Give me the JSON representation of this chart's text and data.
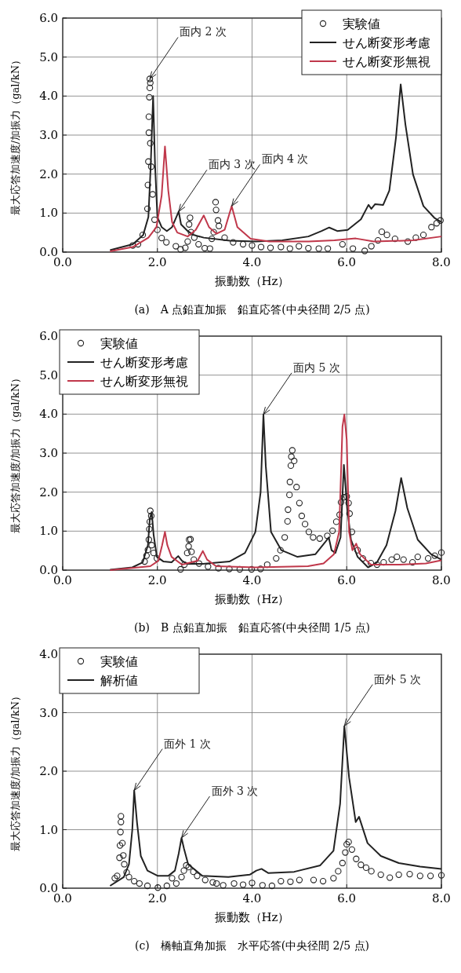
{
  "chart_data": [
    {
      "type": "line",
      "title": "(a)　A 点鉛直加振　鉛直応答(中央径間 2/5 点)",
      "xlabel": "振動数（Hz）",
      "ylabel": "最大応答加速度/加振力（gal/kN）",
      "xlim": [
        0,
        8
      ],
      "ylim": [
        0,
        6
      ],
      "xticks": [
        {
          "value": 0,
          "label": "0.0"
        },
        {
          "value": 2,
          "label": "2.0"
        },
        {
          "value": 4,
          "label": "4.0"
        },
        {
          "value": 6,
          "label": "6.0"
        },
        {
          "value": 8,
          "label": "8.0"
        }
      ],
      "yticks": [
        {
          "value": 0,
          "label": "0.0"
        },
        {
          "value": 1,
          "label": "1.0"
        },
        {
          "value": 2,
          "label": "2.0"
        },
        {
          "value": 3,
          "label": "3.0"
        },
        {
          "value": 4,
          "label": "4.0"
        },
        {
          "value": 5,
          "label": "5.0"
        },
        {
          "value": 6,
          "label": "6.0"
        }
      ],
      "grid": true,
      "legend": "top right",
      "annotations": [
        {
          "text": "面内 2 次",
          "x": 1.84,
          "y": 4.44
        },
        {
          "text": "面内 3 次",
          "x": 2.45,
          "y": 1.04
        },
        {
          "text": "面内 4 次",
          "x": 3.57,
          "y": 1.18
        }
      ],
      "series": [
        {
          "name": "実験値",
          "type": "scatter",
          "marker": "circle",
          "color": "#222222",
          "x": [
            1.48,
            1.59,
            1.69,
            1.79,
            1.8,
            1.81,
            1.82,
            1.82,
            1.83,
            1.84,
            1.84,
            1.85,
            1.85,
            1.87,
            1.9,
            1.94,
            2.0,
            2.09,
            2.19,
            2.39,
            2.49,
            2.59,
            2.64,
            2.67,
            2.69,
            2.71,
            2.78,
            2.87,
            3.0,
            3.11,
            3.15,
            3.19,
            3.23,
            3.24,
            3.28,
            3.3,
            3.42,
            3.6,
            3.81,
            4.0,
            4.19,
            4.39,
            4.61,
            4.8,
            4.99,
            5.19,
            5.41,
            5.6,
            5.91,
            6.13,
            6.38,
            6.52,
            6.66,
            6.74,
            6.85,
            7.02,
            7.29,
            7.46,
            7.62,
            7.79,
            7.9,
            7.98
          ],
          "values": [
            0.17,
            0.2,
            0.44,
            1.11,
            1.72,
            2.32,
            3.06,
            3.47,
            3.97,
            4.21,
            4.44,
            4.34,
            2.79,
            2.19,
            1.48,
            0.83,
            0.57,
            0.36,
            0.25,
            0.15,
            0.07,
            0.11,
            0.27,
            0.71,
            0.88,
            0.51,
            0.37,
            0.2,
            0.1,
            0.09,
            0.34,
            0.51,
            1.28,
            1.08,
            0.81,
            0.67,
            0.37,
            0.25,
            0.2,
            0.17,
            0.13,
            0.11,
            0.13,
            0.09,
            0.15,
            0.1,
            0.09,
            0.09,
            0.2,
            0.09,
            0.03,
            0.15,
            0.3,
            0.52,
            0.44,
            0.34,
            0.27,
            0.37,
            0.44,
            0.64,
            0.74,
            0.81
          ]
        },
        {
          "name": "せん断変形考慮",
          "color": "#222222",
          "x": [
            1.0,
            1.48,
            1.7,
            1.81,
            1.86,
            1.91,
            1.95,
            2.0,
            2.09,
            2.2,
            2.31,
            2.45,
            2.5,
            2.64,
            2.76,
            2.98,
            3.53,
            4.08,
            4.64,
            5.19,
            5.47,
            5.63,
            5.8,
            6.02,
            6.3,
            6.46,
            6.52,
            6.6,
            6.77,
            6.9,
            7.04,
            7.14,
            7.24,
            7.4,
            7.62,
            7.85,
            8.0
          ],
          "values": [
            0.05,
            0.2,
            0.44,
            0.9,
            2.25,
            4.0,
            2.25,
            0.9,
            0.64,
            0.54,
            0.64,
            1.04,
            0.71,
            0.54,
            0.44,
            0.37,
            0.29,
            0.27,
            0.3,
            0.4,
            0.54,
            0.63,
            0.54,
            0.57,
            0.84,
            1.21,
            1.11,
            1.23,
            1.21,
            1.58,
            2.93,
            4.3,
            3.27,
            1.99,
            1.18,
            0.88,
            0.77
          ]
        },
        {
          "name": "せん断変形無視",
          "color": "#c0384b",
          "x": [
            1.0,
            1.48,
            1.81,
            1.98,
            2.09,
            2.16,
            2.23,
            2.31,
            2.42,
            2.64,
            2.81,
            2.98,
            3.09,
            3.25,
            3.42,
            3.57,
            3.69,
            3.97,
            4.36,
            5.19,
            5.74,
            6.19,
            6.57,
            7.4,
            8.0
          ],
          "values": [
            0.02,
            0.13,
            0.37,
            0.64,
            1.45,
            2.71,
            1.58,
            0.77,
            0.5,
            0.4,
            0.57,
            0.94,
            0.64,
            0.47,
            0.57,
            1.18,
            0.64,
            0.34,
            0.27,
            0.27,
            0.3,
            0.35,
            0.27,
            0.3,
            0.4
          ]
        }
      ]
    },
    {
      "type": "line",
      "title": "(b)　B 点鉛直加振　鉛直応答(中央径間 1/5 点)",
      "xlabel": "振動数（Hz）",
      "ylabel": "最大応答加速度/加振力（gal/kN）",
      "xlim": [
        0,
        8
      ],
      "ylim": [
        0,
        6
      ],
      "xticks": [
        {
          "value": 0,
          "label": "0.0"
        },
        {
          "value": 2,
          "label": "2.0"
        },
        {
          "value": 4,
          "label": "4.0"
        },
        {
          "value": 6,
          "label": "6.0"
        },
        {
          "value": 8,
          "label": "8.0"
        }
      ],
      "yticks": [
        {
          "value": 0,
          "label": "0.0"
        },
        {
          "value": 1,
          "label": "1.0"
        },
        {
          "value": 2,
          "label": "2.0"
        },
        {
          "value": 3,
          "label": "3.0"
        },
        {
          "value": 4,
          "label": "4.0"
        },
        {
          "value": 5,
          "label": "5.0"
        },
        {
          "value": 6,
          "label": "6.0"
        }
      ],
      "grid": true,
      "legend": "top left",
      "annotations": [
        {
          "text": "面内 5 次",
          "x": 4.24,
          "y": 3.99
        }
      ],
      "series": [
        {
          "name": "実験値",
          "type": "scatter",
          "marker": "circle",
          "color": "#222222",
          "x": [
            1.73,
            1.77,
            1.8,
            1.82,
            1.83,
            1.84,
            1.85,
            1.87,
            1.88,
            1.92,
            1.99,
            2.49,
            2.57,
            2.63,
            2.66,
            2.67,
            2.7,
            2.72,
            2.77,
            2.88,
            3.07,
            3.29,
            3.52,
            3.74,
            3.99,
            4.18,
            4.32,
            4.51,
            4.6,
            4.69,
            4.75,
            4.76,
            4.79,
            4.8,
            4.82,
            4.83,
            4.85,
            4.89,
            4.94,
            5.0,
            5.05,
            5.12,
            5.2,
            5.29,
            5.43,
            5.59,
            5.7,
            5.78,
            5.85,
            5.88,
            5.94,
            6.0,
            6.04,
            6.06,
            6.11,
            6.23,
            6.34,
            6.51,
            6.64,
            6.78,
            6.95,
            7.06,
            7.2,
            7.39,
            7.5,
            7.72,
            7.86,
            8.0
          ],
          "values": [
            0.22,
            0.37,
            0.52,
            0.78,
            1.05,
            1.24,
            1.52,
            1.39,
            0.64,
            0.44,
            0.3,
            0.02,
            0.14,
            0.44,
            0.61,
            0.78,
            0.79,
            0.47,
            0.27,
            0.17,
            0.09,
            0.05,
            0.03,
            0.02,
            0.02,
            0.03,
            0.14,
            0.3,
            0.51,
            0.84,
            1.25,
            1.55,
            1.93,
            2.26,
            2.68,
            2.91,
            3.07,
            2.8,
            2.13,
            1.72,
            1.39,
            1.18,
            0.98,
            0.84,
            0.81,
            0.88,
            1.01,
            1.24,
            1.42,
            1.74,
            1.87,
            1.89,
            1.72,
            1.45,
            0.98,
            0.51,
            0.3,
            0.18,
            0.14,
            0.2,
            0.27,
            0.34,
            0.27,
            0.2,
            0.34,
            0.3,
            0.37,
            0.45
          ]
        },
        {
          "name": "せん断変形考慮",
          "color": "#222222",
          "x": [
            1.0,
            1.47,
            1.69,
            1.8,
            1.84,
            1.88,
            1.92,
            1.99,
            2.13,
            2.3,
            2.44,
            2.52,
            2.63,
            2.96,
            3.52,
            3.85,
            4.07,
            4.18,
            4.24,
            4.29,
            4.4,
            4.62,
            4.96,
            5.34,
            5.54,
            5.62,
            5.68,
            5.76,
            5.87,
            5.94,
            6.01,
            6.09,
            6.23,
            6.45,
            6.64,
            6.84,
            7.03,
            7.15,
            7.28,
            7.5,
            7.78,
            8.0
          ],
          "values": [
            0.01,
            0.07,
            0.2,
            0.64,
            1.32,
            1.49,
            0.91,
            0.34,
            0.22,
            0.2,
            0.36,
            0.24,
            0.16,
            0.16,
            0.22,
            0.44,
            0.98,
            1.99,
            3.99,
            2.67,
            0.98,
            0.51,
            0.34,
            0.41,
            0.71,
            0.84,
            0.51,
            0.44,
            0.84,
            2.7,
            1.59,
            0.78,
            0.34,
            0.07,
            0.2,
            0.64,
            1.52,
            2.36,
            1.59,
            0.78,
            0.41,
            0.27
          ]
        },
        {
          "name": "せん断変形無視",
          "color": "#c0384b",
          "x": [
            1.0,
            1.85,
            2.02,
            2.1,
            2.16,
            2.21,
            2.3,
            2.52,
            2.85,
            2.96,
            3.05,
            3.24,
            4.07,
            5.18,
            5.51,
            5.73,
            5.84,
            5.91,
            5.95,
            6.0,
            6.05,
            6.12,
            6.2,
            6.28,
            6.51,
            7.12,
            7.67,
            8.0
          ],
          "values": [
            0.0,
            0.1,
            0.24,
            0.64,
            0.98,
            0.64,
            0.34,
            0.14,
            0.24,
            0.49,
            0.27,
            0.1,
            0.07,
            0.1,
            0.17,
            0.41,
            0.98,
            3.68,
            3.99,
            3.34,
            0.98,
            0.51,
            0.68,
            0.41,
            0.14,
            0.14,
            0.17,
            0.25
          ]
        }
      ]
    },
    {
      "type": "line",
      "title": "(c)　橋軸直角加振　水平応答(中央径間 2/5 点)",
      "xlabel": "振動数（Hz）",
      "ylabel": "最大応答加速度/加振力（gal/kN）",
      "xlim": [
        0,
        8
      ],
      "ylim": [
        0,
        4
      ],
      "xticks": [
        {
          "value": 0,
          "label": "0.0"
        },
        {
          "value": 2,
          "label": "2.0"
        },
        {
          "value": 4,
          "label": "4.0"
        },
        {
          "value": 6,
          "label": "6.0"
        },
        {
          "value": 8,
          "label": "8.0"
        }
      ],
      "yticks": [
        {
          "value": 0,
          "label": "0.0"
        },
        {
          "value": 1,
          "label": "1.0"
        },
        {
          "value": 2,
          "label": "2.0"
        },
        {
          "value": 3,
          "label": "3.0"
        },
        {
          "value": 4,
          "label": "4.0"
        }
      ],
      "grid": true,
      "legend": "top left",
      "annotations": [
        {
          "text": "面外 1 次",
          "x": 1.51,
          "y": 1.67
        },
        {
          "text": "面外 3 次",
          "x": 2.51,
          "y": 0.86
        },
        {
          "text": "面外 5 次",
          "x": 5.95,
          "y": 2.77
        }
      ],
      "series": [
        {
          "name": "実験値",
          "type": "scatter",
          "marker": "circle",
          "color": "#222222",
          "x": [
            1.1,
            1.15,
            1.2,
            1.21,
            1.22,
            1.23,
            1.23,
            1.26,
            1.28,
            1.3,
            1.35,
            1.4,
            1.51,
            1.62,
            1.79,
            2.01,
            2.2,
            2.31,
            2.4,
            2.51,
            2.56,
            2.61,
            2.66,
            2.76,
            2.84,
            3.01,
            3.17,
            3.25,
            3.39,
            3.62,
            3.81,
            4.0,
            4.22,
            4.42,
            4.61,
            4.81,
            5.0,
            5.3,
            5.5,
            5.72,
            5.82,
            5.91,
            5.97,
            6.0,
            6.04,
            6.11,
            6.2,
            6.3,
            6.41,
            6.52,
            6.72,
            6.91,
            7.1,
            7.33,
            7.55,
            7.77,
            8.0
          ],
          "values": [
            0.17,
            0.21,
            0.52,
            0.73,
            0.96,
            1.13,
            1.23,
            0.77,
            0.56,
            0.41,
            0.27,
            0.19,
            0.12,
            0.08,
            0.04,
            0.01,
            0.04,
            0.17,
            0.08,
            0.19,
            0.3,
            0.39,
            0.36,
            0.28,
            0.21,
            0.14,
            0.1,
            0.08,
            0.05,
            0.08,
            0.06,
            0.09,
            0.05,
            0.04,
            0.12,
            0.11,
            0.14,
            0.14,
            0.12,
            0.17,
            0.29,
            0.43,
            0.61,
            0.75,
            0.79,
            0.66,
            0.5,
            0.4,
            0.35,
            0.29,
            0.23,
            0.18,
            0.23,
            0.24,
            0.21,
            0.21,
            0.22
          ]
        },
        {
          "name": "解析値",
          "color": "#222222",
          "x": [
            1.0,
            1.29,
            1.4,
            1.47,
            1.51,
            1.57,
            1.65,
            1.79,
            2.01,
            2.23,
            2.37,
            2.45,
            2.51,
            2.56,
            2.65,
            2.95,
            3.5,
            3.95,
            4.09,
            4.2,
            4.34,
            4.89,
            5.44,
            5.72,
            5.86,
            5.95,
            6.05,
            6.19,
            6.26,
            6.44,
            6.72,
            7.1,
            7.55,
            8.0
          ],
          "values": [
            0.04,
            0.19,
            0.41,
            1.0,
            1.67,
            1.12,
            0.55,
            0.3,
            0.21,
            0.21,
            0.3,
            0.59,
            0.86,
            0.68,
            0.41,
            0.21,
            0.19,
            0.23,
            0.3,
            0.33,
            0.26,
            0.28,
            0.39,
            0.64,
            1.44,
            2.77,
            1.89,
            1.13,
            1.22,
            0.77,
            0.55,
            0.43,
            0.37,
            0.33
          ]
        }
      ]
    }
  ]
}
